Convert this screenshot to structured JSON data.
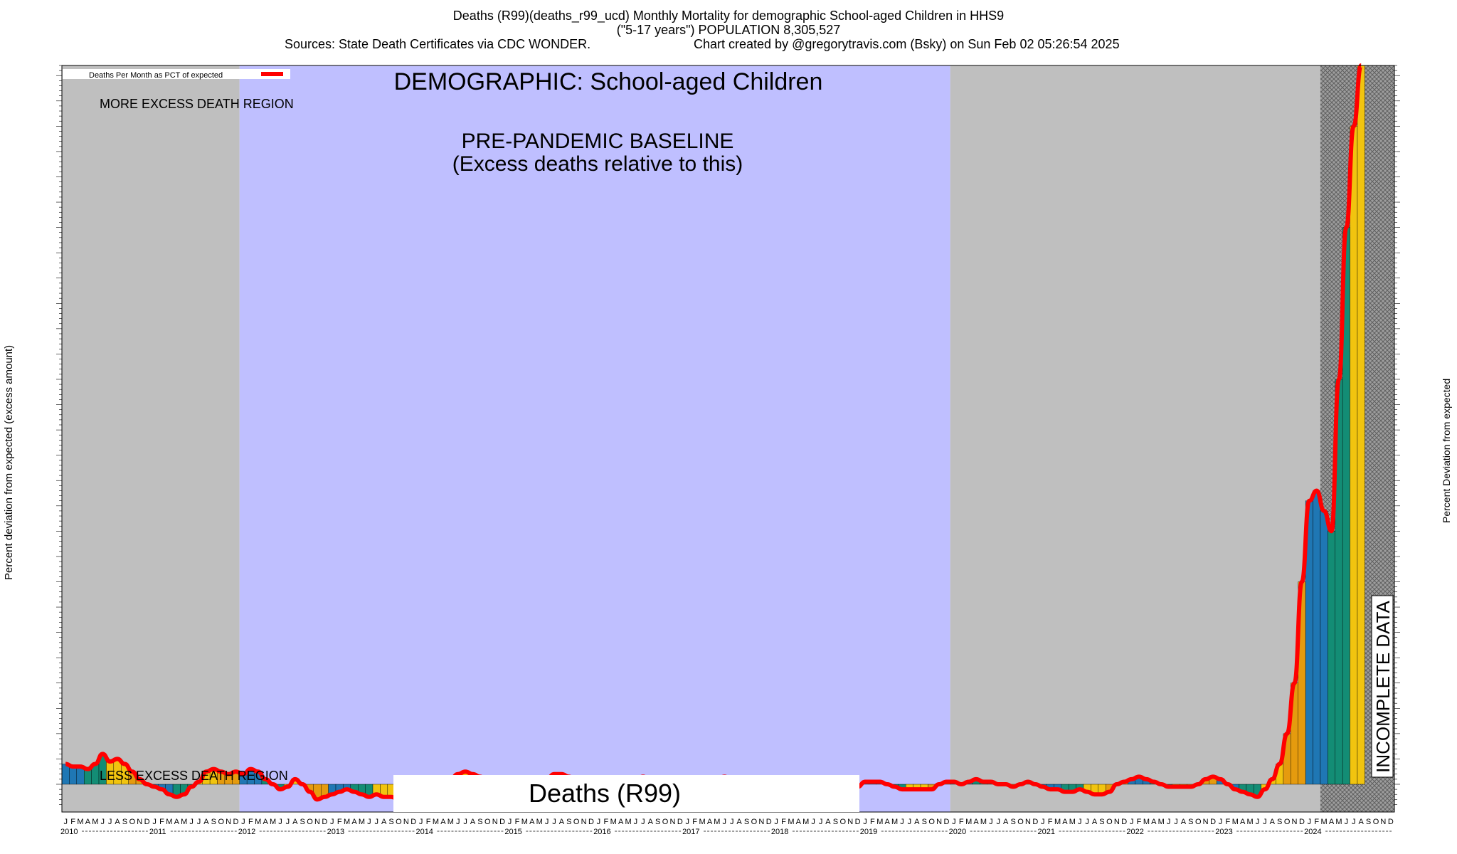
{
  "title": {
    "line1": "Deaths (R99)(deaths_r99_ucd) Monthly Mortality for demographic School-aged Children in HHS9",
    "line2": "(\"5-17 years\") POPULATION 8,305,527",
    "sources": "Sources: State Death Certificates via CDC WONDER.",
    "credit": "Chart created by @gregorytravis.com (Bsky) on Sun Feb 02 05:26:54 2025"
  },
  "legend": {
    "label": "Deaths Per Month as PCT of expected",
    "color": "#ff0000"
  },
  "annotations": {
    "demographic": "DEMOGRAPHIC: School-aged Children",
    "more_region": "MORE EXCESS DEATH REGION",
    "less_region": "LESS EXCESS DEATH REGION",
    "baseline_line1": "PRE-PANDEMIC BASELINE",
    "baseline_line2": "(Excess deaths relative to this)",
    "incomplete": "INCOMPLETE DATA",
    "series_box": "Deaths (R99)"
  },
  "axes": {
    "ylabel_left": "Percent deviation from expected (excess amount)",
    "ylabel_right": "Percent Deviation from expected"
  },
  "colors": {
    "baseline_region": "#bfbfff",
    "outside_region": "#bfbfbf",
    "line": "#ff0000",
    "bar_palette": [
      "#1f77b4",
      "#138d75",
      "#f1c40f",
      "#e59b0e"
    ]
  },
  "chart_data": {
    "type": "bar",
    "title": "Deaths (R99)(deaths_r99_ucd) Monthly Mortality for demographic School-aged Children in HHS9",
    "ylabel": "Percent deviation from expected (excess amount)",
    "ylim": [
      -40,
      1420
    ],
    "start": "2010-01",
    "month_letters": [
      "J",
      "F",
      "M",
      "A",
      "M",
      "J",
      "J",
      "A",
      "S",
      "O",
      "N",
      "D"
    ],
    "years": [
      "2010",
      "2011",
      "2012",
      "2013",
      "2014",
      "2015",
      "2016",
      "2017",
      "2018",
      "2019",
      "2020",
      "2021",
      "2022",
      "2023",
      "2024"
    ],
    "baseline_period": [
      "2012-01",
      "2019-12"
    ],
    "incomplete_period": [
      "2024-03",
      "2024-12"
    ],
    "values": [
      40,
      35,
      35,
      30,
      40,
      60,
      45,
      50,
      40,
      25,
      10,
      0,
      -5,
      -10,
      -20,
      -25,
      -20,
      -5,
      5,
      25,
      30,
      25,
      20,
      25,
      20,
      30,
      25,
      10,
      0,
      -10,
      -5,
      10,
      0,
      -15,
      -30,
      -25,
      -20,
      -15,
      -10,
      -15,
      -20,
      -25,
      -20,
      -25,
      -25,
      -30,
      -40,
      -35,
      -25,
      -20,
      -10,
      0,
      10,
      20,
      25,
      20,
      15,
      5,
      -5,
      -10,
      -5,
      -10,
      -15,
      -10,
      0,
      10,
      20,
      20,
      15,
      5,
      0,
      -5,
      -10,
      -15,
      -10,
      -5,
      5,
      10,
      15,
      10,
      5,
      -5,
      -10,
      -10,
      0,
      0,
      -5,
      0,
      10,
      15,
      10,
      5,
      -5,
      -10,
      -15,
      -10,
      -5,
      -5,
      5,
      5,
      10,
      10,
      10,
      5,
      5,
      0,
      -5,
      -5,
      5,
      5,
      5,
      0,
      -5,
      -10,
      -10,
      -10,
      -10,
      -10,
      0,
      5,
      5,
      0,
      5,
      10,
      5,
      5,
      0,
      0,
      -5,
      0,
      5,
      0,
      -5,
      -10,
      -10,
      -15,
      -15,
      -10,
      -15,
      -20,
      -20,
      -15,
      0,
      5,
      10,
      15,
      10,
      5,
      0,
      -5,
      -5,
      -5,
      -5,
      0,
      10,
      15,
      10,
      0,
      -10,
      -15,
      -20,
      -25,
      -10,
      10,
      40,
      100,
      200,
      400,
      560,
      580,
      540,
      500,
      800,
      1100,
      1300,
      1420
    ],
    "bar_labels": [],
    "grid": false
  }
}
